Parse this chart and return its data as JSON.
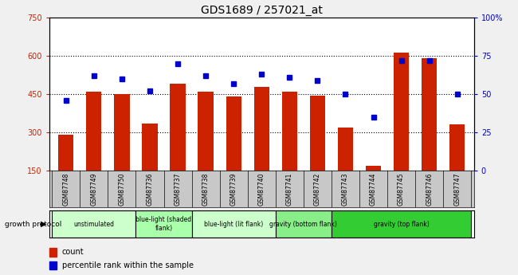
{
  "title": "GDS1689 / 257021_at",
  "samples": [
    "GSM87748",
    "GSM87749",
    "GSM87750",
    "GSM87736",
    "GSM87737",
    "GSM87738",
    "GSM87739",
    "GSM87740",
    "GSM87741",
    "GSM87742",
    "GSM87743",
    "GSM87744",
    "GSM87745",
    "GSM87746",
    "GSM87747"
  ],
  "counts": [
    290,
    460,
    450,
    335,
    490,
    460,
    440,
    480,
    460,
    445,
    318,
    168,
    615,
    590,
    330
  ],
  "percentiles": [
    46,
    62,
    60,
    52,
    70,
    62,
    57,
    63,
    61,
    59,
    50,
    35,
    72,
    72,
    50
  ],
  "groups": [
    {
      "label": "unstimulated",
      "start": 0,
      "end": 3,
      "color": "#ccffcc"
    },
    {
      "label": "blue-light (shaded\nflank)",
      "start": 3,
      "end": 5,
      "color": "#aaffaa"
    },
    {
      "label": "blue-light (lit flank)",
      "start": 5,
      "end": 8,
      "color": "#ccffcc"
    },
    {
      "label": "gravity (bottom flank)",
      "start": 8,
      "end": 10,
      "color": "#88ee88"
    },
    {
      "label": "gravity (top flank)",
      "start": 10,
      "end": 15,
      "color": "#33cc33"
    }
  ],
  "ylim_left": [
    150,
    750
  ],
  "ylim_right": [
    0,
    100
  ],
  "yticks_left": [
    150,
    300,
    450,
    600,
    750
  ],
  "yticks_right": [
    0,
    25,
    50,
    75,
    100
  ],
  "bar_color": "#cc2200",
  "dot_color": "#0000cc",
  "plot_bg": "#ffffff",
  "label_color_left": "#cc2200",
  "label_color_right": "#0000cc",
  "grid_dotted_at": [
    300,
    450,
    600
  ],
  "bar_baseline": 150
}
